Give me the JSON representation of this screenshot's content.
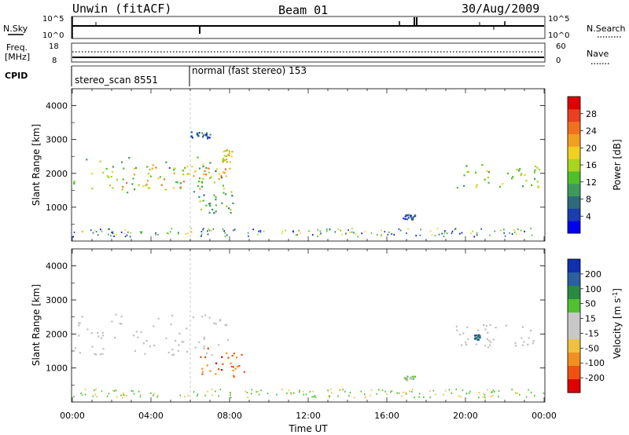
{
  "header": {
    "station": "Unwin (fitACF)",
    "beam": "Beam 01",
    "date": "30/Aug/2009"
  },
  "top_panels": {
    "nsky_label": "N.Sky",
    "nsky_ticks": [
      "10^5",
      "10^0"
    ],
    "nsearch_label": "N.Search",
    "nsearch_ticks": [
      "10^5",
      "10^0"
    ],
    "freq_label": "Freq.",
    "freq_unit": "[MHz]",
    "freq_ticks": [
      "18",
      "8"
    ],
    "nave_label": "Nave",
    "nave_ticks": [
      "60",
      "0"
    ],
    "cpid_label": "CPID",
    "cpid_segments": [
      {
        "text": "stereo_scan 8551",
        "start_hour": 0,
        "end_hour": 6
      },
      {
        "text": "normal (fast stereo) 153",
        "start_hour": 6,
        "end_hour": 24
      }
    ]
  },
  "colors": {
    "power_scale": [
      "#0000ee",
      "#1a3cb0",
      "#2e6b7a",
      "#3e9a5a",
      "#4fbf2a",
      "#a8d41e",
      "#f0d020",
      "#f0a020",
      "#f07020",
      "#e84020",
      "#e00000"
    ],
    "velocity_scale": [
      "#1030b0",
      "#2a60a0",
      "#2a8a40",
      "#50c030",
      "#c8c8c8",
      "#c8c8c8",
      "#f0c040",
      "#f09020",
      "#f05010",
      "#e00000"
    ],
    "ground_scatter": "#c0c0c0"
  },
  "power_colorbar": {
    "title": "Power [dB]",
    "ticks": [
      "4",
      "8",
      "12",
      "16",
      "20",
      "24",
      "28"
    ]
  },
  "velocity_colorbar": {
    "title": "Velocity [m s",
    "title_exp": "-1",
    "title_close": "]",
    "ticks": [
      "200",
      "100",
      "50",
      "15",
      "-15",
      "-50",
      "-100",
      "-200"
    ]
  },
  "chart_data": [
    {
      "type": "heatmap",
      "title": "Power",
      "xlabel": "Time UT",
      "ylabel": "Slant Range [km]",
      "xlim": [
        0,
        24
      ],
      "ylim": [
        0,
        4500
      ],
      "x_ticks": [
        "00:00",
        "04:00",
        "08:00",
        "12:00",
        "16:00",
        "20:00",
        "00:00"
      ],
      "y_ticks": [
        1000,
        2000,
        3000,
        4000
      ],
      "colorbar_title": "Power [dB]",
      "regions": [
        {
          "name": "main band",
          "t_start": 0.0,
          "t_end": 8.0,
          "range_start_km": 1450,
          "range_end_km": 2500,
          "power_db": 12
        },
        {
          "name": "band core",
          "t_start": 2.5,
          "t_end": 7.8,
          "range_start_km": 1550,
          "range_end_km": 2300,
          "power_db": 20
        },
        {
          "name": "band tip",
          "t_start": 7.6,
          "t_end": 8.1,
          "range_start_km": 2350,
          "range_end_km": 2750,
          "power_db": 18
        },
        {
          "name": "diagonal streak",
          "t_start": 6.4,
          "t_end": 8.2,
          "range_start_km": 800,
          "range_end_km": 1500,
          "power_db": 10
        },
        {
          "name": "far echo",
          "t_start": 6.0,
          "t_end": 7.0,
          "range_start_km": 3050,
          "range_end_km": 3250,
          "power_db": 6
        },
        {
          "name": "late cluster",
          "t_start": 16.8,
          "t_end": 17.4,
          "range_start_km": 650,
          "range_end_km": 800,
          "power_db": 4
        },
        {
          "name": "evening band",
          "t_start": 19.5,
          "t_end": 24.0,
          "range_start_km": 1600,
          "range_end_km": 2300,
          "power_db": 12
        }
      ]
    },
    {
      "type": "heatmap",
      "title": "Velocity",
      "xlabel": "Time UT",
      "ylabel": "Slant Range [km]",
      "xlim": [
        0,
        24
      ],
      "ylim": [
        0,
        4500
      ],
      "x_ticks": [
        "00:00",
        "04:00",
        "08:00",
        "12:00",
        "16:00",
        "20:00",
        "00:00"
      ],
      "y_ticks": [
        1000,
        2000,
        3000,
        4000
      ],
      "colorbar_title": "Velocity [m s-1]",
      "regions": [
        {
          "name": "ground scatter band",
          "t_start": 0.0,
          "t_end": 8.0,
          "range_start_km": 1400,
          "range_end_km": 2600,
          "velocity": 0
        },
        {
          "name": "receding streak",
          "t_start": 6.4,
          "t_end": 8.8,
          "range_start_km": 750,
          "range_end_km": 1600,
          "velocity": -150
        },
        {
          "name": "late cluster",
          "t_start": 16.8,
          "t_end": 17.4,
          "range_start_km": 650,
          "range_end_km": 800,
          "velocity": 40
        },
        {
          "name": "evening band",
          "t_start": 19.5,
          "t_end": 24.0,
          "range_start_km": 1600,
          "range_end_km": 2300,
          "velocity": 0
        },
        {
          "name": "approaching patch",
          "t_start": 20.4,
          "t_end": 20.7,
          "range_start_km": 1850,
          "range_end_km": 2000,
          "velocity": 150
        }
      ]
    }
  ]
}
